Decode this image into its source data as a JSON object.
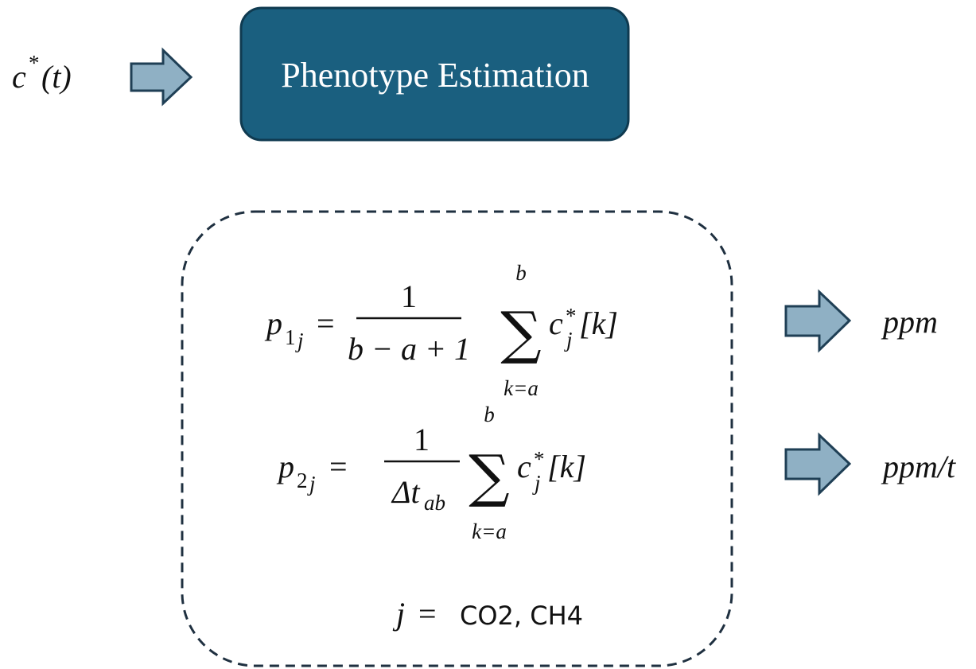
{
  "input": {
    "symbol": "c",
    "superscript": "*",
    "argument": "(t)"
  },
  "process": {
    "title": "Phenotype Estimation"
  },
  "equations": [
    {
      "symbol": "p",
      "index": "1",
      "subscript": "j",
      "equals": "=",
      "numerator": "1",
      "denominator": "b − a + 1",
      "sum": "∑",
      "upper": "b",
      "lower": "k=a",
      "term": "c",
      "term_superscript": "*",
      "term_subscript": "j",
      "term_argument": "[k]",
      "output": "ppm"
    },
    {
      "symbol": "p",
      "index": "2",
      "subscript": "j",
      "equals": "=",
      "numerator": "1",
      "denominator": "Δt",
      "denominator_subscript": "ab",
      "sum": "∑",
      "upper": "b",
      "lower": "k=a",
      "term": "c",
      "term_superscript": "*",
      "term_subscript": "j",
      "term_argument": "[k]",
      "output": "ppm/t"
    }
  ],
  "condition": {
    "variable": "j",
    "equals": "=",
    "values": "CO2, CH4"
  }
}
